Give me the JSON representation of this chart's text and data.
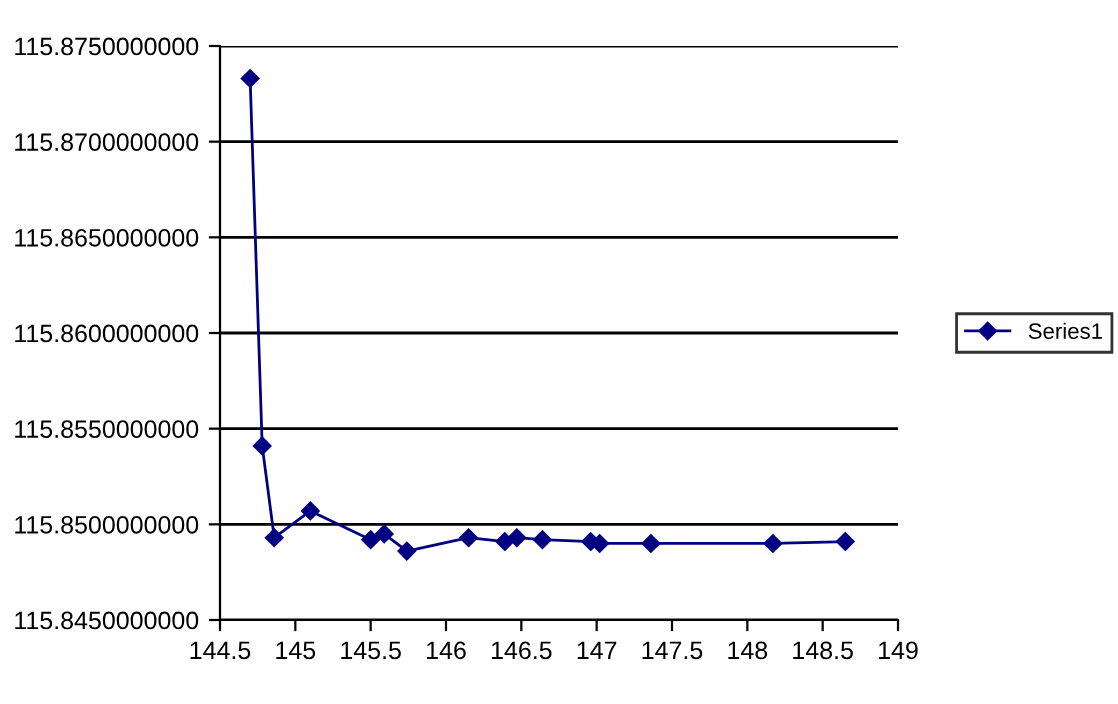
{
  "chart_data": {
    "type": "line",
    "x": [
      144.7,
      144.78,
      144.86,
      145.1,
      145.5,
      145.59,
      145.74,
      146.15,
      146.39,
      146.47,
      146.64,
      146.96,
      147.02,
      147.36,
      148.17,
      148.65
    ],
    "series": [
      {
        "name": "Series1",
        "color": "#000080",
        "values": [
          115.8733,
          115.8541,
          115.8493,
          115.8507,
          115.8492,
          115.8495,
          115.8486,
          115.8493,
          115.8491,
          115.8493,
          115.8492,
          115.8491,
          115.849,
          115.849,
          115.849,
          115.8491
        ]
      }
    ],
    "xlim": [
      144.5,
      149
    ],
    "xticks": [
      144.5,
      145,
      145.5,
      146,
      146.5,
      147,
      147.5,
      148,
      148.5,
      149
    ],
    "ylim": [
      115.845,
      115.875
    ],
    "yticks": [
      {
        "value": 115.845,
        "label": "115.8450000000"
      },
      {
        "value": 115.85,
        "label": "115.8500000000"
      },
      {
        "value": 115.855,
        "label": "115.8550000000"
      },
      {
        "value": 115.86,
        "label": "115.8600000000"
      },
      {
        "value": 115.865,
        "label": "115.8650000000"
      },
      {
        "value": 115.87,
        "label": "115.8700000000"
      },
      {
        "value": 115.875,
        "label": "115.8750000000"
      }
    ],
    "grid": "y",
    "legend": "right",
    "marker": "diamond",
    "line_style": "solid"
  }
}
